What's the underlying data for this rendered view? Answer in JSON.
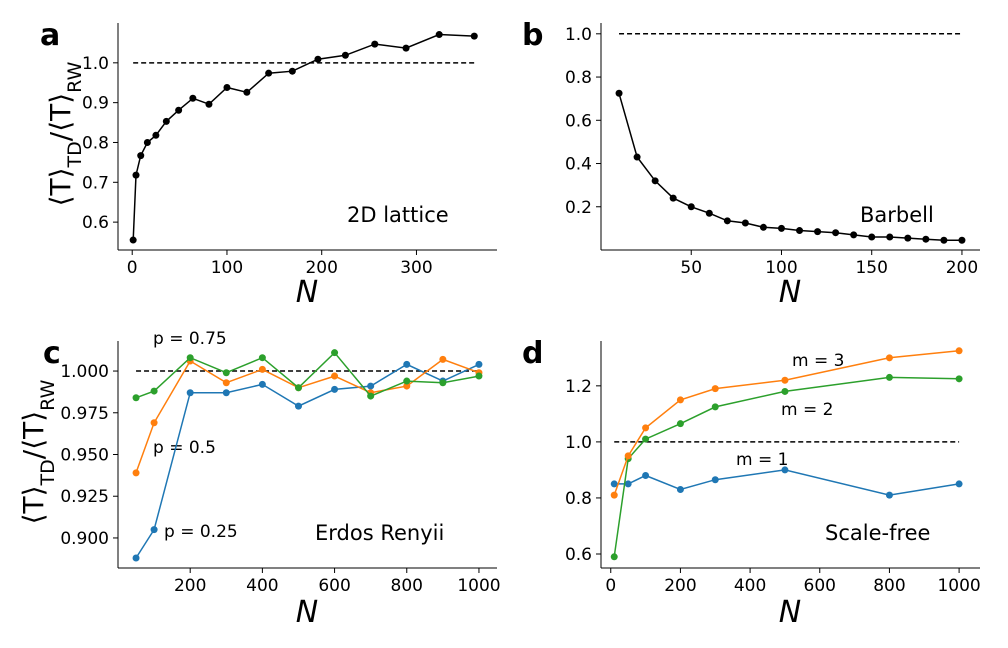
{
  "figure_labels": {
    "x_axis": "N",
    "y_axis": "⟨T⟩TD/⟨T⟩RW",
    "y_axis_main": "⟨T⟩",
    "y_axis_sub1": "TD",
    "y_axis_sub2": "RW"
  },
  "colors": {
    "black": "#000000",
    "blue": "#1f77b4",
    "orange": "#ff7f0e",
    "green": "#2ca02c"
  },
  "chart_data": [
    {
      "panel": "a",
      "type": "line",
      "annotation": "2D lattice",
      "xlabel": "N",
      "ylabel": "⟨T⟩TD/⟨T⟩RW",
      "xlim": [
        -15,
        385
      ],
      "ylim": [
        0.53,
        1.1
      ],
      "xticks": [
        0,
        100,
        200,
        300
      ],
      "xtick_labels": [
        "0",
        "100",
        "200",
        "300"
      ],
      "yticks": [
        0.6,
        0.7,
        0.8,
        0.9,
        1.0
      ],
      "ytick_labels": [
        "0.6",
        "0.7",
        "0.8",
        "0.9",
        "1.0"
      ],
      "reference_line": 1.0,
      "series": [
        {
          "name": "2D lattice",
          "color": "#000000",
          "x": [
            1,
            4,
            9,
            16,
            25,
            36,
            49,
            64,
            81,
            100,
            121,
            144,
            169,
            196,
            225,
            256,
            289,
            324,
            361
          ],
          "y": [
            0.555,
            0.718,
            0.767,
            0.8,
            0.818,
            0.853,
            0.881,
            0.911,
            0.896,
            0.938,
            0.926,
            0.974,
            0.979,
            1.009,
            1.019,
            1.047,
            1.037,
            1.071,
            1.067
          ]
        }
      ]
    },
    {
      "panel": "b",
      "type": "line",
      "annotation": "Barbell",
      "xlabel": "N",
      "ylabel": "",
      "xlim": [
        0,
        210
      ],
      "ylim": [
        0.0,
        1.05
      ],
      "xticks": [
        50,
        100,
        150,
        200
      ],
      "xtick_labels": [
        "50",
        "100",
        "150",
        "200"
      ],
      "yticks": [
        0.2,
        0.4,
        0.6,
        0.8,
        1.0
      ],
      "ytick_labels": [
        "0.2",
        "0.4",
        "0.6",
        "0.8",
        "1.0"
      ],
      "reference_line": 1.0,
      "series": [
        {
          "name": "Barbell",
          "color": "#000000",
          "x": [
            10,
            20,
            30,
            40,
            50,
            60,
            70,
            80,
            90,
            100,
            110,
            120,
            130,
            140,
            150,
            160,
            170,
            180,
            190,
            200
          ],
          "y": [
            0.725,
            0.43,
            0.32,
            0.24,
            0.2,
            0.17,
            0.135,
            0.125,
            0.105,
            0.1,
            0.09,
            0.085,
            0.08,
            0.07,
            0.06,
            0.06,
            0.055,
            0.05,
            0.045,
            0.045
          ]
        }
      ]
    },
    {
      "panel": "c",
      "type": "line",
      "annotation": "Erdos Renyii",
      "xlabel": "N",
      "ylabel": "⟨T⟩TD/⟨T⟩RW",
      "xlim": [
        0,
        1050
      ],
      "ylim": [
        0.882,
        1.018
      ],
      "xticks": [
        200,
        400,
        600,
        800,
        1000
      ],
      "xtick_labels": [
        "200",
        "400",
        "600",
        "800",
        "1000"
      ],
      "yticks": [
        0.9,
        0.925,
        0.95,
        0.975,
        1.0
      ],
      "ytick_labels": [
        "0.900",
        "0.925",
        "0.950",
        "0.975",
        "1.000"
      ],
      "reference_line": 1.0,
      "series_labels": [
        "p = 0.25",
        "p = 0.5",
        "p = 0.75"
      ],
      "series": [
        {
          "name": "p = 0.25",
          "color": "#1f77b4",
          "x": [
            50,
            100,
            200,
            300,
            400,
            500,
            600,
            700,
            800,
            900,
            1000
          ],
          "y": [
            0.888,
            0.905,
            0.987,
            0.987,
            0.992,
            0.979,
            0.989,
            0.991,
            1.004,
            0.994,
            1.004
          ]
        },
        {
          "name": "p = 0.5",
          "color": "#ff7f0e",
          "x": [
            50,
            100,
            200,
            300,
            400,
            500,
            600,
            700,
            800,
            900,
            1000
          ],
          "y": [
            0.939,
            0.969,
            1.006,
            0.993,
            1.001,
            0.99,
            0.997,
            0.987,
            0.991,
            1.007,
            0.999
          ]
        },
        {
          "name": "p = 0.75",
          "color": "#2ca02c",
          "x": [
            50,
            100,
            200,
            300,
            400,
            500,
            600,
            700,
            800,
            900,
            1000
          ],
          "y": [
            0.984,
            0.988,
            1.008,
            0.999,
            1.008,
            0.99,
            1.011,
            0.985,
            0.994,
            0.993,
            0.997
          ]
        }
      ]
    },
    {
      "panel": "d",
      "type": "line",
      "annotation": "Scale-free",
      "xlabel": "N",
      "ylabel": "",
      "xlim": [
        -28,
        1060
      ],
      "ylim": [
        0.55,
        1.36
      ],
      "xticks": [
        0,
        200,
        400,
        600,
        800,
        1000
      ],
      "xtick_labels": [
        "0",
        "200",
        "400",
        "600",
        "800",
        "1000"
      ],
      "yticks": [
        0.6,
        0.8,
        1.0,
        1.2
      ],
      "ytick_labels": [
        "0.6",
        "0.8",
        "1.0",
        "1.2"
      ],
      "reference_line": 1.0,
      "series_labels": [
        "m = 1",
        "m = 2",
        "m = 3"
      ],
      "series": [
        {
          "name": "m = 1",
          "color": "#1f77b4",
          "x": [
            10,
            50,
            100,
            200,
            300,
            500,
            800,
            1000
          ],
          "y": [
            0.85,
            0.85,
            0.88,
            0.83,
            0.865,
            0.9,
            0.81,
            0.85
          ]
        },
        {
          "name": "m = 2",
          "color": "#2ca02c",
          "x": [
            10,
            50,
            100,
            200,
            300,
            500,
            800,
            1000
          ],
          "y": [
            0.59,
            0.94,
            1.01,
            1.065,
            1.125,
            1.18,
            1.23,
            1.225
          ]
        },
        {
          "name": "m = 3",
          "color": "#ff7f0e",
          "x": [
            10,
            50,
            100,
            200,
            300,
            500,
            800,
            1000
          ],
          "y": [
            0.81,
            0.95,
            1.05,
            1.15,
            1.19,
            1.22,
            1.3,
            1.325
          ]
        }
      ]
    }
  ]
}
